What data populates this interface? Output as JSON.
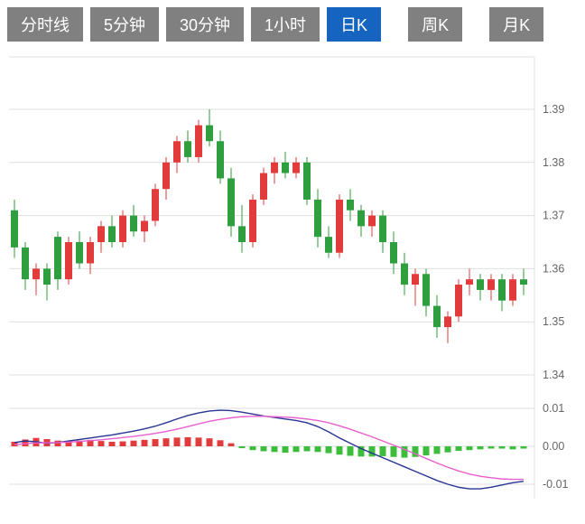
{
  "toolbar": {
    "tabs": [
      {
        "label": "分时线",
        "active": false
      },
      {
        "label": "5分钟",
        "active": false
      },
      {
        "label": "30分钟",
        "active": false
      },
      {
        "label": "1小时",
        "active": false
      },
      {
        "label": "日K",
        "active": true
      },
      {
        "label": "周K",
        "active": false
      },
      {
        "label": "月K",
        "active": false
      }
    ],
    "colors": {
      "inactive_bg": "#808080",
      "active_bg": "#1565c0",
      "text": "#ffffff"
    }
  },
  "chart_data": {
    "type": "candlestick",
    "subtype": "daily-k-with-macd",
    "legend_position": "none",
    "grid": true,
    "price_axis": {
      "side": "right",
      "tick_labels": [
        "1.39",
        "1.38",
        "1.37",
        "1.36",
        "1.35",
        "1.34"
      ],
      "tick_values": [
        1.39,
        1.38,
        1.37,
        1.36,
        1.35,
        1.34
      ],
      "range": [
        1.335,
        1.4
      ]
    },
    "indicator_axis": {
      "side": "right",
      "name": "MACD",
      "tick_labels": [
        "0.01",
        "0.00",
        "-0.01"
      ],
      "tick_values": [
        0.01,
        0,
        -0.01
      ],
      "range": [
        -0.013,
        0.012
      ]
    },
    "colors": {
      "up": "#e23b3b",
      "down": "#2f9e3e",
      "hist_up": "#e23b3b",
      "hist_down": "#3cbe3c",
      "dif": "#283593",
      "dea": "#e85fd0",
      "grid": "#dfdfdf",
      "axis_text": "#666666"
    },
    "candles_format": [
      "open",
      "high",
      "low",
      "close"
    ],
    "candles": [
      [
        1.371,
        1.373,
        1.362,
        1.364
      ],
      [
        1.364,
        1.365,
        1.356,
        1.358
      ],
      [
        1.358,
        1.361,
        1.355,
        1.36
      ],
      [
        1.36,
        1.361,
        1.354,
        1.357
      ],
      [
        1.366,
        1.367,
        1.356,
        1.358
      ],
      [
        1.358,
        1.366,
        1.357,
        1.365
      ],
      [
        1.365,
        1.367,
        1.36,
        1.361
      ],
      [
        1.361,
        1.366,
        1.359,
        1.365
      ],
      [
        1.365,
        1.369,
        1.363,
        1.368
      ],
      [
        1.368,
        1.37,
        1.364,
        1.365
      ],
      [
        1.365,
        1.371,
        1.364,
        1.37
      ],
      [
        1.37,
        1.372,
        1.366,
        1.367
      ],
      [
        1.367,
        1.37,
        1.365,
        1.369
      ],
      [
        1.369,
        1.376,
        1.368,
        1.375
      ],
      [
        1.375,
        1.381,
        1.373,
        1.38
      ],
      [
        1.38,
        1.385,
        1.378,
        1.384
      ],
      [
        1.384,
        1.386,
        1.38,
        1.381
      ],
      [
        1.381,
        1.388,
        1.38,
        1.387
      ],
      [
        1.387,
        1.39,
        1.383,
        1.384
      ],
      [
        1.384,
        1.386,
        1.376,
        1.377
      ],
      [
        1.377,
        1.379,
        1.366,
        1.368
      ],
      [
        1.368,
        1.372,
        1.363,
        1.365
      ],
      [
        1.365,
        1.374,
        1.364,
        1.373
      ],
      [
        1.373,
        1.379,
        1.372,
        1.378
      ],
      [
        1.378,
        1.381,
        1.376,
        1.38
      ],
      [
        1.38,
        1.382,
        1.377,
        1.378
      ],
      [
        1.378,
        1.381,
        1.377,
        1.38
      ],
      [
        1.38,
        1.381,
        1.372,
        1.373
      ],
      [
        1.373,
        1.375,
        1.364,
        1.366
      ],
      [
        1.366,
        1.368,
        1.362,
        1.363
      ],
      [
        1.363,
        1.374,
        1.362,
        1.373
      ],
      [
        1.373,
        1.375,
        1.369,
        1.371
      ],
      [
        1.371,
        1.372,
        1.366,
        1.368
      ],
      [
        1.368,
        1.371,
        1.366,
        1.37
      ],
      [
        1.37,
        1.371,
        1.363,
        1.365
      ],
      [
        1.365,
        1.367,
        1.359,
        1.361
      ],
      [
        1.361,
        1.363,
        1.355,
        1.357
      ],
      [
        1.357,
        1.36,
        1.353,
        1.359
      ],
      [
        1.359,
        1.36,
        1.351,
        1.353
      ],
      [
        1.353,
        1.355,
        1.347,
        1.349
      ],
      [
        1.349,
        1.352,
        1.346,
        1.351
      ],
      [
        1.351,
        1.358,
        1.35,
        1.357
      ],
      [
        1.357,
        1.36,
        1.355,
        1.358
      ],
      [
        1.358,
        1.359,
        1.354,
        1.356
      ],
      [
        1.356,
        1.359,
        1.354,
        1.358
      ],
      [
        1.358,
        1.359,
        1.352,
        1.354
      ],
      [
        1.354,
        1.359,
        1.353,
        1.358
      ],
      [
        1.358,
        1.36,
        1.355,
        1.357
      ]
    ],
    "macd": {
      "dif": [
        0.001,
        0.0014,
        0.0012,
        0.0008,
        0.001,
        0.0014,
        0.0018,
        0.0022,
        0.0026,
        0.003,
        0.0035,
        0.004,
        0.0046,
        0.0053,
        0.0062,
        0.0072,
        0.0081,
        0.0088,
        0.0093,
        0.0095,
        0.0094,
        0.009,
        0.0085,
        0.008,
        0.0076,
        0.0072,
        0.0068,
        0.0062,
        0.0052,
        0.0038,
        0.0022,
        0.0008,
        -0.0006,
        -0.0018,
        -0.003,
        -0.0042,
        -0.0054,
        -0.0066,
        -0.0078,
        -0.009,
        -0.01,
        -0.0108,
        -0.0112,
        -0.0112,
        -0.0108,
        -0.0102,
        -0.0096,
        -0.0092
      ],
      "dea": [
        0.0004,
        0.0007,
        0.0009,
        0.0009,
        0.001,
        0.0011,
        0.0013,
        0.0015,
        0.0017,
        0.002,
        0.0023,
        0.0026,
        0.003,
        0.0034,
        0.0039,
        0.0045,
        0.0052,
        0.0059,
        0.0066,
        0.0071,
        0.0075,
        0.0078,
        0.0079,
        0.0079,
        0.0078,
        0.0077,
        0.0075,
        0.0072,
        0.0068,
        0.0062,
        0.0054,
        0.0045,
        0.0035,
        0.0025,
        0.0014,
        0.0003,
        -0.0008,
        -0.002,
        -0.0032,
        -0.0044,
        -0.0055,
        -0.0065,
        -0.0073,
        -0.0079,
        -0.0083,
        -0.0086,
        -0.0087,
        -0.0087
      ],
      "hist": [
        0.0012,
        0.0018,
        0.0022,
        0.0019,
        0.0015,
        0.0013,
        0.0015,
        0.0017,
        0.0014,
        0.0012,
        0.0013,
        0.0015,
        0.0017,
        0.0019,
        0.0021,
        0.0023,
        0.0024,
        0.0023,
        0.0021,
        0.0016,
        0.0008,
        -0.0005,
        -0.001,
        -0.0013,
        -0.0015,
        -0.0017,
        -0.0015,
        -0.0013,
        -0.0015,
        -0.0018,
        -0.0022,
        -0.0025,
        -0.0027,
        -0.0027,
        -0.0026,
        -0.0028,
        -0.003,
        -0.0028,
        -0.0024,
        -0.002,
        -0.0016,
        -0.0012,
        -0.001,
        -0.0008,
        -0.0006,
        -0.0006,
        -0.0008,
        -0.0006
      ]
    }
  }
}
